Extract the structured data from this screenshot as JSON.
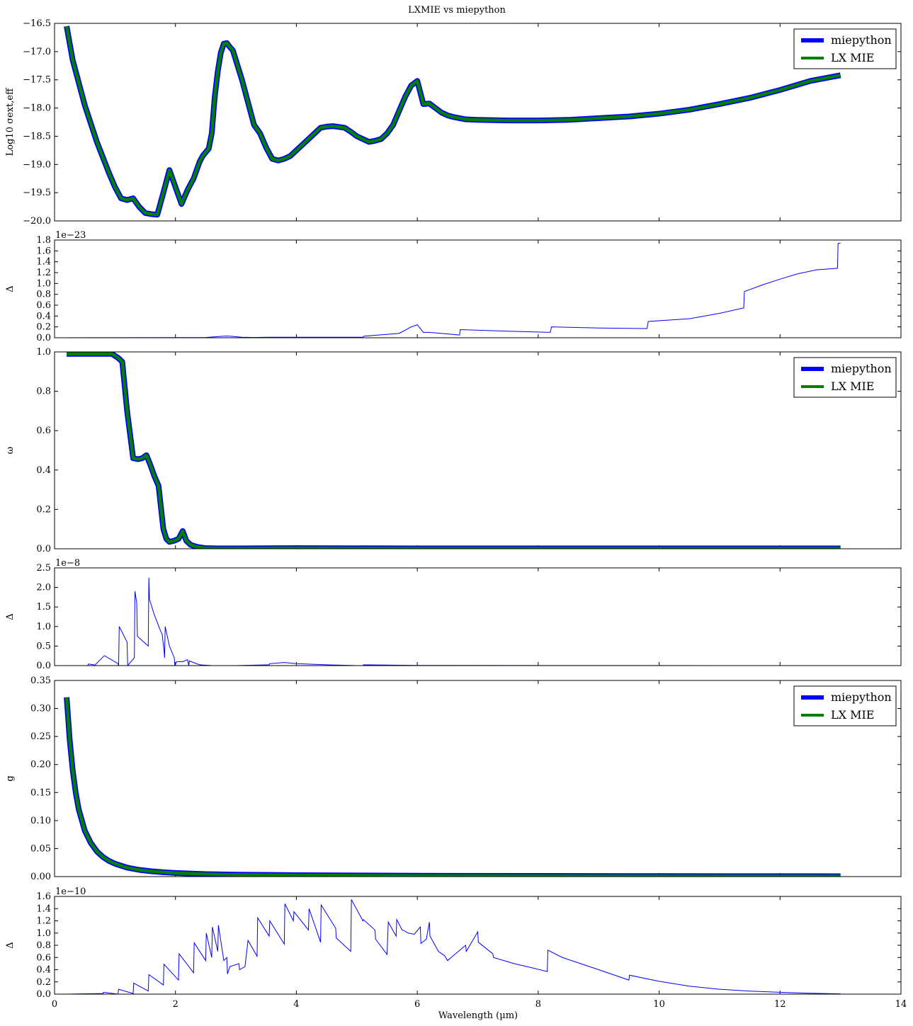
{
  "figure": {
    "title": "LXMIE vs miepython",
    "xlabel": "Wavelength (µm)"
  },
  "chart_data": [
    {
      "type": "line",
      "ylabel": "Log10 σext,eff",
      "xlim": [
        0,
        14
      ],
      "ylim": [
        -20.0,
        -16.5
      ],
      "yticks": [
        -20.0,
        -19.5,
        -19.0,
        -18.5,
        -18.0,
        -17.5,
        -17.0,
        -16.5
      ],
      "ytick_labels": [
        "−20.0",
        "−19.5",
        "−19.0",
        "−18.5",
        "−18.0",
        "−17.5",
        "−17.0",
        "−16.5"
      ],
      "legend": "top-right",
      "series": [
        {
          "name": "miepython",
          "color": "#0000ff"
        },
        {
          "name": "LX MIE",
          "color": "#008000"
        }
      ],
      "x": [
        0.2,
        0.3,
        0.5,
        0.7,
        0.9,
        1.0,
        1.1,
        1.2,
        1.3,
        1.4,
        1.5,
        1.6,
        1.7,
        1.8,
        1.85,
        1.9,
        2.0,
        2.1,
        2.2,
        2.3,
        2.4,
        2.45,
        2.55,
        2.6,
        2.65,
        2.7,
        2.75,
        2.8,
        2.85,
        2.9,
        2.95,
        3.1,
        3.2,
        3.3,
        3.4,
        3.5,
        3.6,
        3.7,
        3.8,
        3.9,
        4.0,
        4.2,
        4.4,
        4.5,
        4.6,
        4.8,
        4.9,
        5.0,
        5.1,
        5.2,
        5.3,
        5.4,
        5.5,
        5.6,
        5.7,
        5.8,
        5.9,
        6.0,
        6.1,
        6.2,
        6.3,
        6.4,
        6.5,
        6.6,
        6.7,
        6.8,
        7.0,
        7.5,
        8.0,
        8.5,
        9.0,
        9.5,
        10.0,
        10.5,
        11.0,
        11.5,
        12.0,
        12.5,
        13.0
      ],
      "y": [
        -16.55,
        -17.15,
        -17.95,
        -18.6,
        -19.15,
        -19.4,
        -19.6,
        -19.63,
        -19.6,
        -19.75,
        -19.86,
        -19.88,
        -19.89,
        -19.5,
        -19.3,
        -19.1,
        -19.4,
        -19.7,
        -19.45,
        -19.25,
        -18.95,
        -18.85,
        -18.72,
        -18.45,
        -17.8,
        -17.35,
        -17.02,
        -16.86,
        -16.85,
        -16.92,
        -16.98,
        -17.5,
        -17.9,
        -18.3,
        -18.45,
        -18.7,
        -18.9,
        -18.93,
        -18.9,
        -18.85,
        -18.75,
        -18.55,
        -18.35,
        -18.33,
        -18.32,
        -18.35,
        -18.42,
        -18.5,
        -18.55,
        -18.6,
        -18.58,
        -18.55,
        -18.45,
        -18.3,
        -18.05,
        -17.8,
        -17.6,
        -17.52,
        -17.93,
        -17.92,
        -18.0,
        -18.08,
        -18.13,
        -18.16,
        -18.18,
        -18.2,
        -18.21,
        -18.22,
        -18.22,
        -18.21,
        -18.18,
        -18.15,
        -18.1,
        -18.03,
        -17.93,
        -17.82,
        -17.68,
        -17.52,
        -17.42
      ]
    },
    {
      "type": "line",
      "ylabel": "Δ",
      "offset_label": "1e−23",
      "xlim": [
        0,
        14
      ],
      "ylim": [
        0.0,
        1.8
      ],
      "yticks": [
        0.0,
        0.2,
        0.4,
        0.6,
        0.8,
        1.0,
        1.2,
        1.4,
        1.6,
        1.8
      ],
      "ytick_labels": [
        "0.0",
        "0.2",
        "0.4",
        "0.6",
        "0.8",
        "1.0",
        "1.2",
        "1.4",
        "1.6",
        "1.8"
      ],
      "series": [
        {
          "color": "#0000ff"
        }
      ],
      "x": [
        0.2,
        2.5,
        2.8,
        2.9,
        3.1,
        3.3,
        3.5,
        4.0,
        5.1,
        5.12,
        5.7,
        5.9,
        6.0,
        6.1,
        6.2,
        6.4,
        6.5,
        6.7,
        6.71,
        7.5,
        8.2,
        8.22,
        9.0,
        9.8,
        9.82,
        10.5,
        11.0,
        11.4,
        11.41,
        11.7,
        12.0,
        12.3,
        12.6,
        12.95,
        12.96,
        13.0
      ],
      "y": [
        0.0,
        0.005,
        0.03,
        0.03,
        0.01,
        0.005,
        0.01,
        0.01,
        0.01,
        0.03,
        0.08,
        0.2,
        0.24,
        0.1,
        0.1,
        0.08,
        0.07,
        0.05,
        0.15,
        0.12,
        0.1,
        0.2,
        0.18,
        0.17,
        0.3,
        0.35,
        0.45,
        0.55,
        0.85,
        0.97,
        1.08,
        1.18,
        1.25,
        1.28,
        1.74,
        1.74
      ]
    },
    {
      "type": "line",
      "ylabel": "ω",
      "xlim": [
        0,
        14
      ],
      "ylim": [
        0.0,
        1.0
      ],
      "yticks": [
        0.0,
        0.2,
        0.4,
        0.6,
        0.8,
        1.0
      ],
      "ytick_labels": [
        "0.0",
        "0.2",
        "0.4",
        "0.6",
        "0.8",
        "1.0"
      ],
      "legend": "top-right",
      "series": [
        {
          "name": "miepython",
          "color": "#0000ff"
        },
        {
          "name": "LX MIE",
          "color": "#008000"
        }
      ],
      "x": [
        0.2,
        0.5,
        0.8,
        0.95,
        1.05,
        1.12,
        1.2,
        1.3,
        1.38,
        1.45,
        1.52,
        1.58,
        1.65,
        1.72,
        1.8,
        1.85,
        1.9,
        1.97,
        2.05,
        2.12,
        2.18,
        2.25,
        2.35,
        2.5,
        2.7,
        3.0,
        4.0,
        6.0,
        8.0,
        13.0
      ],
      "y": [
        0.99,
        0.99,
        0.99,
        0.99,
        0.97,
        0.95,
        0.7,
        0.46,
        0.455,
        0.46,
        0.475,
        0.43,
        0.37,
        0.32,
        0.1,
        0.05,
        0.035,
        0.04,
        0.05,
        0.09,
        0.04,
        0.02,
        0.01,
        0.003,
        0.002,
        0.002,
        0.003,
        0.002,
        0.002,
        0.002
      ]
    },
    {
      "type": "line",
      "ylabel": "Δ",
      "offset_label": "1e−8",
      "xlim": [
        0,
        14
      ],
      "ylim": [
        0.0,
        2.5
      ],
      "yticks": [
        0.0,
        0.5,
        1.0,
        1.5,
        2.0,
        2.5
      ],
      "ytick_labels": [
        "0.0",
        "0.5",
        "1.0",
        "1.5",
        "2.0",
        "2.5"
      ],
      "series": [
        {
          "color": "#0000ff"
        }
      ],
      "x": [
        0.2,
        0.55,
        0.56,
        0.65,
        0.66,
        0.82,
        0.83,
        1.05,
        1.06,
        1.07,
        1.2,
        1.21,
        1.32,
        1.33,
        1.36,
        1.37,
        1.55,
        1.56,
        1.57,
        1.65,
        1.75,
        1.78,
        1.81,
        1.82,
        1.83,
        1.9,
        1.98,
        1.99,
        2.02,
        2.12,
        2.2,
        2.22,
        2.23,
        2.26,
        2.4,
        2.6,
        3.0,
        3.55,
        3.56,
        3.8,
        4.0,
        4.5,
        5.0,
        5.1,
        5.11,
        6.0,
        8.0,
        13.0
      ],
      "y": [
        0.0,
        0.0,
        0.04,
        0.02,
        0.0,
        0.25,
        0.25,
        0.05,
        0.0,
        1.0,
        0.6,
        0.0,
        0.2,
        1.9,
        1.6,
        0.75,
        0.5,
        2.25,
        1.7,
        1.3,
        0.9,
        0.8,
        0.4,
        0.2,
        1.0,
        0.5,
        0.2,
        0.0,
        0.1,
        0.1,
        0.15,
        0.0,
        0.12,
        0.1,
        0.02,
        0.0,
        0.0,
        0.02,
        0.05,
        0.08,
        0.05,
        0.02,
        0.0,
        0.0,
        0.02,
        0.005,
        0.002,
        0.0
      ]
    },
    {
      "type": "line",
      "ylabel": "g",
      "xlim": [
        0,
        14
      ],
      "ylim": [
        0.0,
        0.35
      ],
      "yticks": [
        0.0,
        0.05,
        0.1,
        0.15,
        0.2,
        0.25,
        0.3,
        0.35
      ],
      "ytick_labels": [
        "0.00",
        "0.05",
        "0.10",
        "0.15",
        "0.20",
        "0.25",
        "0.30",
        "0.35"
      ],
      "legend": "top-right",
      "series": [
        {
          "name": "miepython",
          "color": "#0000ff"
        },
        {
          "name": "LX MIE",
          "color": "#008000"
        }
      ],
      "x": [
        0.2,
        0.25,
        0.3,
        0.35,
        0.4,
        0.5,
        0.6,
        0.7,
        0.8,
        0.9,
        1.0,
        1.2,
        1.4,
        1.6,
        1.8,
        2.0,
        2.5,
        3.0,
        4.0,
        5.0,
        6.0,
        8.0,
        10.0,
        13.0
      ],
      "y": [
        0.32,
        0.245,
        0.19,
        0.15,
        0.12,
        0.082,
        0.06,
        0.045,
        0.035,
        0.028,
        0.023,
        0.016,
        0.012,
        0.0095,
        0.0078,
        0.0065,
        0.0045,
        0.0035,
        0.0025,
        0.002,
        0.0016,
        0.0012,
        0.0009,
        0.0007
      ]
    },
    {
      "type": "line",
      "ylabel": "Δ",
      "offset_label": "1e−10",
      "xlim": [
        0,
        14
      ],
      "ylim": [
        0.0,
        1.6
      ],
      "yticks": [
        0.0,
        0.2,
        0.4,
        0.6,
        0.8,
        1.0,
        1.2,
        1.4,
        1.6
      ],
      "ytick_labels": [
        "0.0",
        "0.2",
        "0.4",
        "0.6",
        "0.8",
        "1.0",
        "1.2",
        "1.4",
        "1.6"
      ],
      "series": [
        {
          "color": "#0000ff"
        }
      ],
      "x": [
        0.2,
        0.8,
        0.81,
        1.05,
        1.06,
        1.3,
        1.31,
        1.55,
        1.56,
        1.8,
        1.81,
        2.05,
        2.06,
        2.3,
        2.31,
        2.5,
        2.51,
        2.6,
        2.61,
        2.7,
        2.71,
        2.8,
        2.85,
        2.86,
        2.9,
        3.05,
        3.06,
        3.15,
        3.2,
        3.35,
        3.36,
        3.55,
        3.56,
        3.8,
        3.81,
        3.95,
        3.96,
        4.2,
        4.21,
        4.4,
        4.41,
        4.65,
        4.66,
        4.9,
        4.91,
        5.1,
        5.11,
        5.3,
        5.31,
        5.5,
        5.52,
        5.65,
        5.66,
        5.75,
        5.76,
        5.85,
        5.95,
        6.05,
        6.06,
        6.15,
        6.2,
        6.21,
        6.35,
        6.45,
        6.5,
        6.8,
        6.81,
        7.0,
        7.01,
        7.25,
        7.26,
        7.6,
        7.9,
        8.15,
        8.16,
        8.4,
        9.0,
        9.5,
        9.51,
        10.0,
        10.5,
        11.0,
        11.5,
        12.0,
        12.5,
        13.0
      ],
      "y": [
        0.0,
        0.01,
        0.03,
        0.0,
        0.08,
        0.01,
        0.18,
        0.05,
        0.32,
        0.15,
        0.49,
        0.23,
        0.66,
        0.35,
        0.84,
        0.55,
        1.0,
        0.6,
        1.1,
        0.7,
        1.13,
        0.55,
        0.6,
        0.33,
        0.45,
        0.5,
        0.4,
        0.45,
        0.88,
        0.62,
        1.25,
        0.95,
        1.2,
        0.82,
        1.48,
        1.2,
        1.35,
        1.05,
        1.4,
        0.85,
        1.46,
        1.08,
        0.92,
        0.7,
        1.55,
        1.2,
        1.22,
        1.05,
        0.9,
        0.65,
        1.18,
        0.95,
        1.22,
        1.05,
        1.05,
        1.0,
        0.98,
        1.1,
        0.83,
        0.9,
        1.18,
        0.95,
        0.7,
        0.63,
        0.55,
        0.8,
        0.7,
        1.02,
        0.85,
        0.66,
        0.6,
        0.5,
        0.43,
        0.37,
        0.72,
        0.6,
        0.4,
        0.23,
        0.31,
        0.21,
        0.13,
        0.08,
        0.05,
        0.03,
        0.015,
        0.005
      ]
    }
  ]
}
